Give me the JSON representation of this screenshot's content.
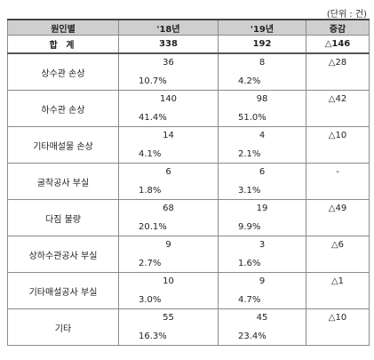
{
  "unit_label": "(단위 : 건)",
  "headers": [
    "원인별",
    "'18년",
    "'19년",
    "증감"
  ],
  "total": {
    "label": "합 계",
    "y18": "338",
    "y19": "192",
    "change": "△146"
  },
  "rows": [
    {
      "label": "상수관 손상",
      "y18_count": "36",
      "y18_pct": "10.7%",
      "y19_count": "8",
      "y19_pct": "4.2%",
      "change": "△28"
    },
    {
      "label": "하수관 손상",
      "y18_count": "140",
      "y18_pct": "41.4%",
      "y19_count": "98",
      "y19_pct": "51.0%",
      "change": "△42"
    },
    {
      "label": "기타매설물 손상",
      "y18_count": "14",
      "y18_pct": "4.1%",
      "y19_count": "4",
      "y19_pct": "2.1%",
      "change": "△10"
    },
    {
      "label": "굴착공사 부실",
      "y18_count": "6",
      "y18_pct": "1.8%",
      "y19_count": "6",
      "y19_pct": "3.1%",
      "change": "-"
    },
    {
      "label": "다짐 불량",
      "y18_count": "68",
      "y18_pct": "20.1%",
      "y19_count": "19",
      "y19_pct": "9.9%",
      "change": "△49"
    },
    {
      "label": "상하수관공사 부실",
      "y18_count": "9",
      "y18_pct": "2.7%",
      "y19_count": "3",
      "y19_pct": "1.6%",
      "change": "△6"
    },
    {
      "label": "기타매설공사 부실",
      "y18_count": "10",
      "y18_pct": "3.0%",
      "y19_count": "9",
      "y19_pct": "4.7%",
      "change": "△1"
    },
    {
      "label": "기타",
      "y18_count": "55",
      "y18_pct": "16.3%",
      "y19_count": "45",
      "y19_pct": "23.4%",
      "change": "△10"
    }
  ]
}
